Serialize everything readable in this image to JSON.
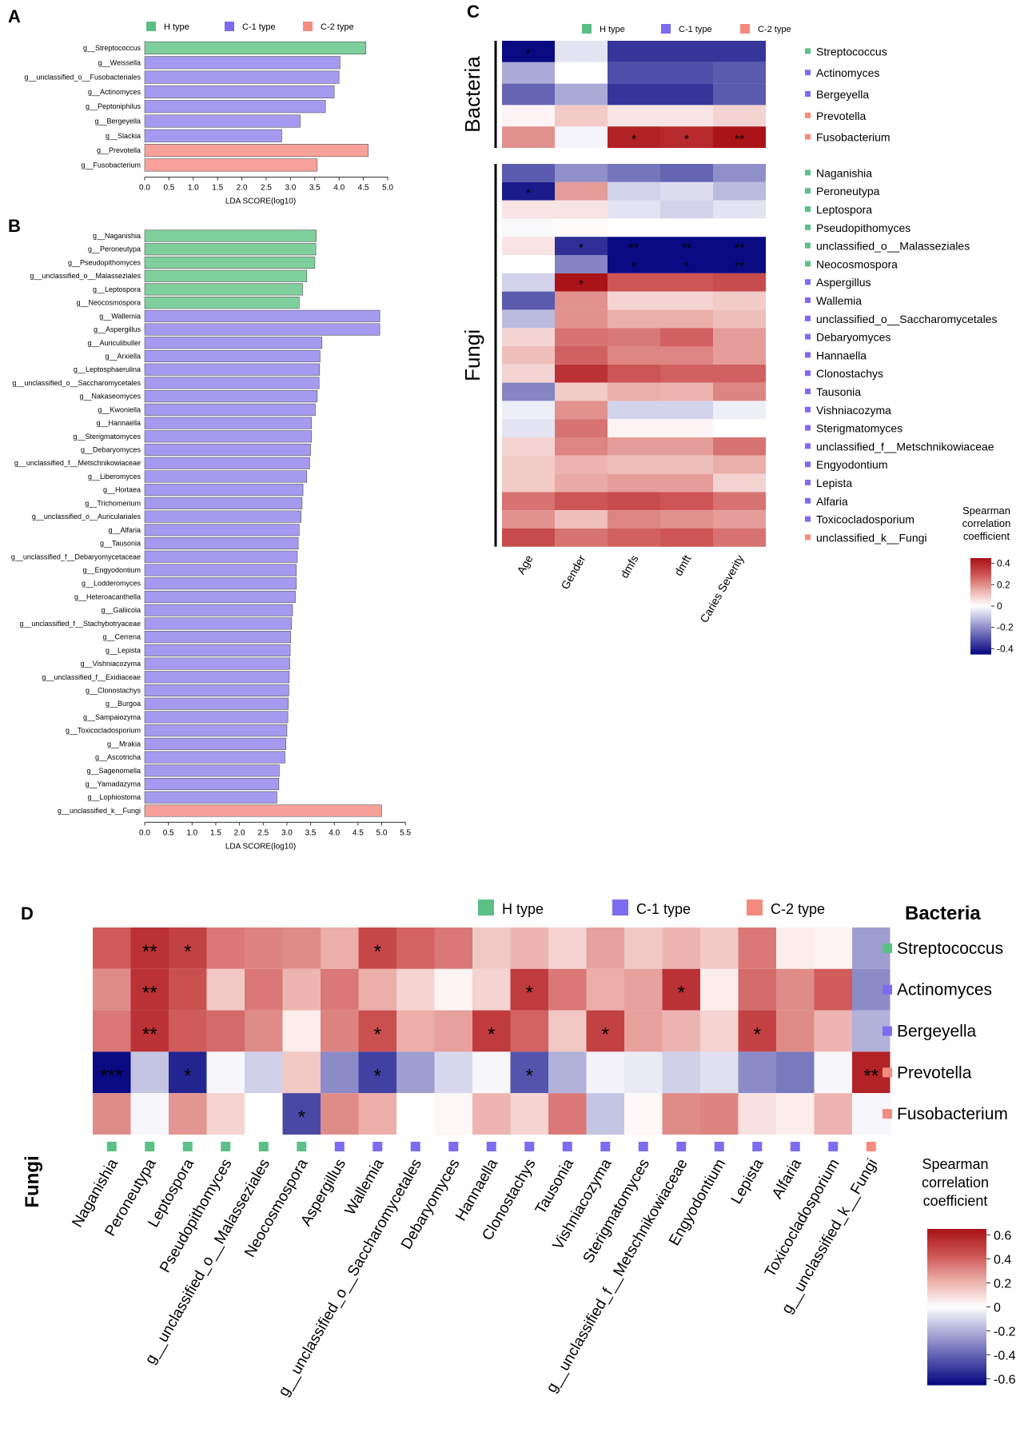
{
  "chart_data": [
    {
      "panel": "A",
      "type": "bar",
      "orientation": "horizontal",
      "legend": [
        {
          "name": "H type",
          "color": "#5cbf86"
        },
        {
          "name": "C-1 type",
          "color": "#7b6cf0"
        },
        {
          "name": "C-2 type",
          "color": "#f58a7e"
        }
      ],
      "categories": [
        "g__Streptococcus",
        "g__Weissella",
        "g__unclassified_o__Fusobacteriales",
        "g__Actinomyces",
        "g__Peptoniphilus",
        "g__Bergeyella",
        "g__Slackia",
        "g__Prevotella",
        "g__Fusobacterium"
      ],
      "values": [
        4.55,
        4.02,
        4.0,
        3.9,
        3.72,
        3.2,
        2.82,
        4.6,
        3.55
      ],
      "groups": [
        "H",
        "C1",
        "C1",
        "C1",
        "C1",
        "C1",
        "C1",
        "C2",
        "C2"
      ],
      "xlabel": "LDA SCORE(log10)",
      "xlim": [
        0,
        5.0
      ],
      "xticks": [
        "0.0",
        "0.5",
        "1.0",
        "1.5",
        "2.0",
        "2.5",
        "3.0",
        "3.5",
        "4.0",
        "4.5",
        "5.0"
      ]
    },
    {
      "panel": "B",
      "type": "bar",
      "orientation": "horizontal",
      "categories": [
        "g__Naganishia",
        "g__Peroneutypa",
        "g__Pseudopithomyces",
        "g__unclassified_o__Malasseziales",
        "g__Leptospora",
        "g__Neocosmospora",
        "g__Wallemia",
        "g__Aspergillus",
        "g__Auriculibuller",
        "g__Arxiella",
        "g__Leptosphaerulina",
        "g__unclassified_o__Saccharomycetales",
        "g__Nakaseomyces",
        "g__Kwoniella",
        "g__Hannaella",
        "g__Sterigmatomyces",
        "g__Debaryomyces",
        "g__unclassified_f__Metschnikowiaceae",
        "g__Liberomyces",
        "g__Hortaea",
        "g__Trichomerium",
        "g__unclassified_o__Auriculariales",
        "g__Alfaria",
        "g__Tausonia",
        "g__unclassified_f__Debaryomycetaceae",
        "g__Engyodontium",
        "g__Lodderomyces",
        "g__Heteroacanthella",
        "g__Galiicola",
        "g__unclassified_f__Stachybotryaceae",
        "g__Cerrena",
        "g__Lepista",
        "g__Vishniacozyma",
        "g__unclassified_f__Exidiaceae",
        "g__Clonostachys",
        "g__Burgoa",
        "g__Sampaiozyma",
        "g__Toxicocladosporium",
        "g__Mrakia",
        "g__Ascotricha",
        "g__Sagenomella",
        "g__Yamadazyma",
        "g__Lophiostoma",
        "g__unclassified_k__Fungi"
      ],
      "values": [
        3.62,
        3.61,
        3.59,
        3.42,
        3.33,
        3.26,
        4.96,
        4.96,
        3.74,
        3.7,
        3.69,
        3.68,
        3.64,
        3.6,
        3.52,
        3.52,
        3.5,
        3.48,
        3.42,
        3.34,
        3.32,
        3.3,
        3.26,
        3.24,
        3.22,
        3.2,
        3.2,
        3.18,
        3.12,
        3.1,
        3.08,
        3.07,
        3.06,
        3.05,
        3.04,
        3.03,
        3.02,
        3.0,
        2.98,
        2.96,
        2.84,
        2.83,
        2.79,
        5.0
      ],
      "groups": [
        "H",
        "H",
        "H",
        "H",
        "H",
        "H",
        "C1",
        "C1",
        "C1",
        "C1",
        "C1",
        "C1",
        "C1",
        "C1",
        "C1",
        "C1",
        "C1",
        "C1",
        "C1",
        "C1",
        "C1",
        "C1",
        "C1",
        "C1",
        "C1",
        "C1",
        "C1",
        "C1",
        "C1",
        "C1",
        "C1",
        "C1",
        "C1",
        "C1",
        "C1",
        "C1",
        "C1",
        "C1",
        "C1",
        "C1",
        "C1",
        "C1",
        "C1",
        "C2"
      ],
      "xlabel": "LDA SCORE(log10)",
      "xlim": [
        0,
        5.5
      ],
      "xticks": [
        "0.0",
        "0.5",
        "1.0",
        "1.5",
        "2.0",
        "2.5",
        "3.0",
        "3.5",
        "4.0",
        "4.5",
        "5.0",
        "5.5"
      ]
    },
    {
      "panel": "C",
      "type": "heatmap",
      "legend": [
        {
          "name": "H type",
          "color": "#5cbf86"
        },
        {
          "name": "C-1 type",
          "color": "#7b6cf0"
        },
        {
          "name": "C-2 type",
          "color": "#f58a7e"
        }
      ],
      "columns": [
        "Age",
        "Gender",
        "dmfs",
        "dmft",
        "Caries Severity"
      ],
      "bacteria_label": "Bacteria",
      "fungi_label": "Fungi",
      "bacteria_rows": [
        {
          "name": "Streptococcus",
          "group": "H",
          "values": [
            -0.45,
            -0.05,
            -0.37,
            -0.37,
            -0.37
          ],
          "stars": [
            "*",
            "",
            "",
            "",
            ""
          ]
        },
        {
          "name": "Actinomyces",
          "group": "C1",
          "values": [
            -0.15,
            0.0,
            -0.32,
            -0.32,
            -0.3
          ],
          "stars": [
            "",
            "",
            "",
            "",
            ""
          ]
        },
        {
          "name": "Bergeyella",
          "group": "C1",
          "values": [
            -0.28,
            -0.15,
            -0.37,
            -0.37,
            -0.3
          ],
          "stars": [
            "",
            "",
            "",
            "",
            ""
          ]
        },
        {
          "name": "Prevotella",
          "group": "C2",
          "values": [
            0.02,
            0.1,
            0.05,
            0.05,
            0.08
          ],
          "stars": [
            "",
            "",
            "",
            "",
            ""
          ]
        },
        {
          "name": "Fusobacterium",
          "group": "C2",
          "values": [
            0.2,
            -0.02,
            0.42,
            0.4,
            0.45
          ],
          "stars": [
            "",
            "",
            "*",
            "*",
            "**"
          ]
        }
      ],
      "fungi_rows": [
        {
          "name": "Naganishia",
          "group": "H",
          "values": [
            -0.3,
            -0.2,
            -0.25,
            -0.28,
            -0.2
          ],
          "stars": [
            "",
            "",
            "",
            "",
            ""
          ]
        },
        {
          "name": "Peroneutypa",
          "group": "H",
          "values": [
            -0.42,
            0.18,
            -0.08,
            -0.06,
            -0.12
          ],
          "stars": [
            "*",
            "",
            "",
            "",
            ""
          ]
        },
        {
          "name": "Leptospora",
          "group": "H",
          "values": [
            0.05,
            0.05,
            -0.05,
            -0.08,
            -0.05
          ],
          "stars": [
            "",
            "",
            "",
            "",
            ""
          ]
        },
        {
          "name": "Pseudopithomyces",
          "group": "H",
          "values": [
            -0.01,
            0.01,
            0.0,
            0.0,
            0.0
          ],
          "stars": [
            "",
            "",
            "",
            "",
            ""
          ]
        },
        {
          "name": "unclassified_o__Malasseziales",
          "group": "H",
          "values": [
            0.05,
            -0.38,
            -0.45,
            -0.45,
            -0.45
          ],
          "stars": [
            "",
            "*",
            "**",
            "**",
            "**"
          ]
        },
        {
          "name": "Neocosmospora",
          "group": "H",
          "values": [
            0.0,
            -0.22,
            -0.45,
            -0.45,
            -0.45
          ],
          "stars": [
            "",
            "",
            "*",
            "*",
            "**"
          ]
        },
        {
          "name": "Aspergillus",
          "group": "C1",
          "values": [
            -0.08,
            0.45,
            0.3,
            0.3,
            0.32
          ],
          "stars": [
            "",
            "*",
            "",
            "",
            ""
          ]
        },
        {
          "name": "Wallemia",
          "group": "C1",
          "values": [
            -0.3,
            0.2,
            0.08,
            0.08,
            0.1
          ],
          "stars": [
            "",
            "",
            "",
            "",
            ""
          ]
        },
        {
          "name": "unclassified_o__Saccharomycetales",
          "group": "C1",
          "values": [
            -0.12,
            0.2,
            0.15,
            0.15,
            0.12
          ],
          "stars": [
            "",
            "",
            "",
            "",
            ""
          ]
        },
        {
          "name": "Debaryomyces",
          "group": "C1",
          "values": [
            0.08,
            0.25,
            0.24,
            0.28,
            0.18
          ],
          "stars": [
            "",
            "",
            "",
            "",
            ""
          ]
        },
        {
          "name": "Hannaella",
          "group": "C1",
          "values": [
            0.12,
            0.28,
            0.22,
            0.22,
            0.18
          ],
          "stars": [
            "",
            "",
            "",
            "",
            ""
          ]
        },
        {
          "name": "Clonostachys",
          "group": "C1",
          "values": [
            0.08,
            0.38,
            0.3,
            0.28,
            0.28
          ],
          "stars": [
            "",
            "",
            "",
            "",
            ""
          ]
        },
        {
          "name": "Tausonia",
          "group": "C1",
          "values": [
            -0.22,
            0.1,
            0.15,
            0.14,
            0.22
          ],
          "stars": [
            "",
            "",
            "",
            "",
            ""
          ]
        },
        {
          "name": "Vishniacozyma",
          "group": "C1",
          "values": [
            -0.03,
            0.2,
            -0.08,
            -0.08,
            -0.03
          ],
          "stars": [
            "",
            "",
            "",
            "",
            ""
          ]
        },
        {
          "name": "Sterigmatomyces",
          "group": "C1",
          "values": [
            -0.05,
            0.25,
            0.02,
            0.02,
            0.0
          ],
          "stars": [
            "",
            "",
            "",
            "",
            ""
          ]
        },
        {
          "name": "unclassified_f__Metschnikowiaceae",
          "group": "C1",
          "values": [
            0.08,
            0.22,
            0.18,
            0.18,
            0.25
          ],
          "stars": [
            "",
            "",
            "",
            "",
            ""
          ]
        },
        {
          "name": "Engyodontium",
          "group": "C1",
          "values": [
            0.1,
            0.14,
            0.12,
            0.12,
            0.15
          ],
          "stars": [
            "",
            "",
            "",
            "",
            ""
          ]
        },
        {
          "name": "Lepista",
          "group": "C1",
          "values": [
            0.1,
            0.16,
            0.18,
            0.18,
            0.08
          ],
          "stars": [
            "",
            "",
            "",
            "",
            ""
          ]
        },
        {
          "name": "Alfaria",
          "group": "C1",
          "values": [
            0.25,
            0.3,
            0.32,
            0.3,
            0.25
          ],
          "stars": [
            "",
            "",
            "",
            "",
            ""
          ]
        },
        {
          "name": "Toxicocladosporium",
          "group": "C1",
          "values": [
            0.2,
            0.12,
            0.22,
            0.2,
            0.18
          ],
          "stars": [
            "",
            "",
            "",
            "",
            ""
          ]
        },
        {
          "name": "unclassified_k__Fungi",
          "group": "C2",
          "values": [
            0.32,
            0.25,
            0.28,
            0.3,
            0.25
          ],
          "stars": [
            "",
            "",
            "",
            "",
            ""
          ]
        }
      ],
      "colorbar_title": [
        "Spearman",
        "correlation",
        "coefficient"
      ],
      "colorbar_ticks": [
        "0.4",
        "0.2",
        "0",
        "-0.2",
        "-0.4"
      ],
      "vlim": [
        -0.45,
        0.45
      ]
    },
    {
      "panel": "D",
      "type": "heatmap",
      "legend": [
        {
          "name": "H type",
          "color": "#5cbf86"
        },
        {
          "name": "C-1 type",
          "color": "#7b6cf0"
        },
        {
          "name": "C-2 type",
          "color": "#f58a7e"
        }
      ],
      "bacteria_label": "Bacteria",
      "fungi_label": "Fungi",
      "rows": [
        {
          "name": "Streptococcus",
          "group": "H"
        },
        {
          "name": "Actinomyces",
          "group": "C1"
        },
        {
          "name": "Bergeyella",
          "group": "C1"
        },
        {
          "name": "Prevotella",
          "group": "C2"
        },
        {
          "name": "Fusobacterium",
          "group": "C2"
        }
      ],
      "columns": [
        {
          "name": "Naganishia",
          "group": "H"
        },
        {
          "name": "Peroneutypa",
          "group": "H"
        },
        {
          "name": "Leptospora",
          "group": "H"
        },
        {
          "name": "Pseudopithomyces",
          "group": "H"
        },
        {
          "name": "g__unclassified_o__Malasseziales",
          "group": "H"
        },
        {
          "name": "Neocosmospora",
          "group": "H"
        },
        {
          "name": "Aspergillus",
          "group": "C1"
        },
        {
          "name": "Wallemia",
          "group": "C1"
        },
        {
          "name": "g__unclassified_o__Saccharomycetales",
          "group": "C1"
        },
        {
          "name": "Debaryomyces",
          "group": "C1"
        },
        {
          "name": "Hannaella",
          "group": "C1"
        },
        {
          "name": "Clonostachys",
          "group": "C1"
        },
        {
          "name": "Tausonia",
          "group": "C1"
        },
        {
          "name": "Vishniacozyma",
          "group": "C1"
        },
        {
          "name": "Sterigmatomyces",
          "group": "C1"
        },
        {
          "name": "g__unclassified_f__Metschnikowiaceae",
          "group": "C1"
        },
        {
          "name": "Engyodontium",
          "group": "C1"
        },
        {
          "name": "Lepista",
          "group": "C1"
        },
        {
          "name": "Alfaria",
          "group": "C1"
        },
        {
          "name": "Toxicocladosporium",
          "group": "C1"
        },
        {
          "name": "g__unclassified_k__Fungi",
          "group": "C2"
        }
      ],
      "values": [
        [
          0.42,
          0.55,
          0.5,
          0.35,
          0.32,
          0.3,
          0.22,
          0.48,
          0.4,
          0.35,
          0.15,
          0.2,
          0.12,
          0.25,
          0.15,
          0.2,
          0.15,
          0.35,
          0.05,
          0.03,
          -0.25
        ],
        [
          0.3,
          0.55,
          0.45,
          0.15,
          0.35,
          0.2,
          0.35,
          0.22,
          0.12,
          0.03,
          0.12,
          0.52,
          0.35,
          0.22,
          0.25,
          0.55,
          0.05,
          0.38,
          0.3,
          0.42,
          -0.3
        ],
        [
          0.35,
          0.55,
          0.42,
          0.38,
          0.3,
          0.05,
          0.32,
          0.45,
          0.22,
          0.25,
          0.52,
          0.4,
          0.15,
          0.5,
          0.25,
          0.2,
          0.12,
          0.5,
          0.3,
          0.2,
          -0.2
        ],
        [
          -0.65,
          -0.15,
          -0.58,
          -0.02,
          -0.12,
          0.15,
          -0.3,
          -0.5,
          -0.25,
          -0.1,
          -0.02,
          -0.45,
          -0.2,
          -0.03,
          -0.05,
          -0.12,
          -0.08,
          -0.3,
          -0.35,
          -0.02,
          0.6
        ],
        [
          0.3,
          -0.02,
          0.28,
          0.12,
          0.0,
          -0.48,
          0.3,
          0.22,
          0.0,
          0.02,
          0.2,
          0.12,
          0.35,
          -0.15,
          0.02,
          0.3,
          0.32,
          0.08,
          0.05,
          0.2,
          -0.02
        ]
      ],
      "stars": [
        [
          "",
          "**",
          "*",
          "",
          "",
          "",
          "",
          "*",
          "",
          "",
          "",
          "",
          "",
          "",
          "",
          "",
          "",
          "",
          "",
          "",
          ""
        ],
        [
          "",
          "**",
          "",
          "",
          "",
          "",
          "",
          "",
          "",
          "",
          "",
          "*",
          "",
          "",
          "",
          "*",
          "",
          "",
          "",
          "",
          ""
        ],
        [
          "",
          "**",
          "",
          "",
          "",
          "",
          "",
          "*",
          "",
          "",
          "*",
          "",
          "",
          "*",
          "",
          "",
          "",
          "*",
          "",
          "",
          ""
        ],
        [
          "***",
          "",
          "*",
          "",
          "",
          "",
          "",
          "*",
          "",
          "",
          "",
          "*",
          "",
          "",
          "",
          "",
          "",
          "",
          "",
          "",
          "**"
        ],
        [
          "",
          "",
          "",
          "",
          "",
          "*",
          "",
          "",
          "",
          "",
          "",
          "",
          "",
          "",
          "",
          "",
          "",
          "",
          "",
          "",
          ""
        ]
      ],
      "colorbar_title": [
        "Spearman",
        "correlation",
        "coefficient"
      ],
      "colorbar_ticks": [
        "0.6",
        "0.4",
        "0.2",
        "0",
        "-0.2",
        "-0.4",
        "-0.6"
      ],
      "vlim": [
        -0.65,
        0.65
      ]
    }
  ]
}
